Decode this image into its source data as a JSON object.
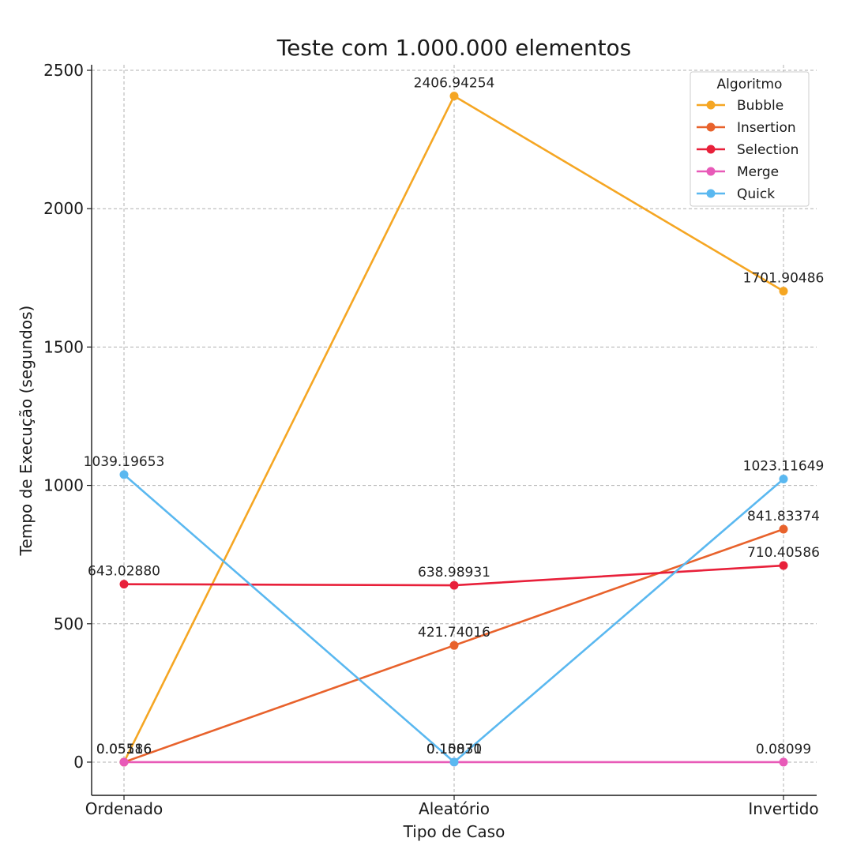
{
  "chart_data": {
    "type": "line",
    "title": "Teste com 1.000.000 elementos",
    "xlabel": "Tipo de Caso",
    "ylabel": "Tempo de Execução (segundos)",
    "categories": [
      "Ordenado",
      "Aleatório",
      "Invertido"
    ],
    "ylim": [
      -120,
      2520
    ],
    "yticks": [
      0,
      500,
      1000,
      1500,
      2000,
      2500
    ],
    "grid": true,
    "legend": {
      "title": "Algoritmo",
      "placement": "top-right"
    },
    "series": [
      {
        "name": "Bubble",
        "color": "#f5a623",
        "values": [
          0.05586,
          2406.94254,
          1701.90486
        ],
        "labels": [
          "0.05586",
          "2406.94254",
          "1701.90486"
        ]
      },
      {
        "name": "Insertion",
        "color": "#e8622c",
        "values": [
          0.1,
          421.74016,
          841.83374
        ],
        "labels": [
          "",
          "421.74016",
          "841.83374"
        ]
      },
      {
        "name": "Selection",
        "color": "#e8203a",
        "values": [
          643.0288,
          638.98931,
          710.40586
        ],
        "labels": [
          "643.02880",
          "638.98931",
          "710.40586"
        ]
      },
      {
        "name": "Merge",
        "color": "#e85ab8",
        "values": [
          0.05116,
          0.1087,
          0.08099
        ],
        "labels": [
          "0.05116",
          "0.10870",
          "0.08099"
        ]
      },
      {
        "name": "Quick",
        "color": "#5ab8f0",
        "values": [
          1039.19653,
          0.15031,
          1023.11649
        ],
        "labels": [
          "1039.19653",
          "0.15031",
          "1023.11649"
        ]
      }
    ]
  }
}
